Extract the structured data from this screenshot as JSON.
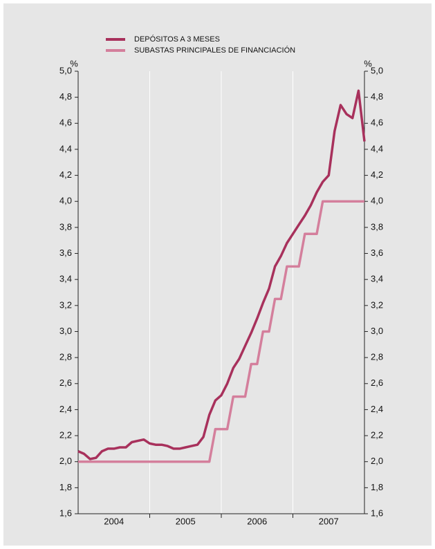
{
  "chart_data": {
    "type": "line",
    "y_unit": "%",
    "y2_unit": "%",
    "x": [
      2004,
      2004.083,
      2004.167,
      2004.25,
      2004.333,
      2004.417,
      2004.5,
      2004.583,
      2004.667,
      2004.75,
      2004.833,
      2004.917,
      2005,
      2005.083,
      2005.167,
      2005.25,
      2005.333,
      2005.417,
      2005.5,
      2005.583,
      2005.667,
      2005.75,
      2005.833,
      2005.917,
      2006,
      2006.083,
      2006.167,
      2006.25,
      2006.333,
      2006.417,
      2006.5,
      2006.583,
      2006.667,
      2006.75,
      2006.833,
      2006.917,
      2007,
      2007.083,
      2007.167,
      2007.25,
      2007.333,
      2007.417,
      2007.5,
      2007.583,
      2007.667,
      2007.75,
      2007.833,
      2007.917,
      2008
    ],
    "xlim": [
      2004,
      2008
    ],
    "xticks": [
      2005,
      2006,
      2007
    ],
    "year_labels": [
      "2004",
      "2005",
      "2006",
      "2007"
    ],
    "series": [
      {
        "name": "DEPÓSITOS A 3 MESES",
        "color": "#a8315c",
        "values": [
          2.08,
          2.06,
          2.02,
          2.03,
          2.08,
          2.1,
          2.1,
          2.11,
          2.11,
          2.15,
          2.16,
          2.17,
          2.14,
          2.13,
          2.13,
          2.12,
          2.1,
          2.1,
          2.11,
          2.12,
          2.13,
          2.19,
          2.36,
          2.47,
          2.51,
          2.6,
          2.72,
          2.79,
          2.89,
          2.99,
          3.1,
          3.22,
          3.33,
          3.5,
          3.58,
          3.68,
          3.75,
          3.82,
          3.89,
          3.97,
          4.07,
          4.15,
          4.2,
          4.54,
          4.74,
          4.67,
          4.64,
          4.85,
          4.46
        ]
      },
      {
        "name": "SUBASTAS PRINCIPALES DE FINANCIACIÓN",
        "color": "#d47f9c",
        "values": [
          2.0,
          2.0,
          2.0,
          2.0,
          2.0,
          2.0,
          2.0,
          2.0,
          2.0,
          2.0,
          2.0,
          2.0,
          2.0,
          2.0,
          2.0,
          2.0,
          2.0,
          2.0,
          2.0,
          2.0,
          2.0,
          2.0,
          2.0,
          2.25,
          2.25,
          2.25,
          2.5,
          2.5,
          2.5,
          2.75,
          2.75,
          3.0,
          3.0,
          3.25,
          3.25,
          3.5,
          3.5,
          3.5,
          3.75,
          3.75,
          3.75,
          4.0,
          4.0,
          4.0,
          4.0,
          4.0,
          4.0,
          4.0,
          4.0
        ]
      }
    ],
    "ylim": [
      1.6,
      5.0
    ],
    "yticks": [
      {
        "value": 1.6,
        "label": "1,6"
      },
      {
        "value": 1.8,
        "label": "1,8"
      },
      {
        "value": 2.0,
        "label": "2,0"
      },
      {
        "value": 2.2,
        "label": "2,2"
      },
      {
        "value": 2.4,
        "label": "2,4"
      },
      {
        "value": 2.6,
        "label": "2,6"
      },
      {
        "value": 2.8,
        "label": "2,8"
      },
      {
        "value": 3.0,
        "label": "3,0"
      },
      {
        "value": 3.2,
        "label": "3,2"
      },
      {
        "value": 3.4,
        "label": "3,4"
      },
      {
        "value": 3.6,
        "label": "3,6"
      },
      {
        "value": 3.8,
        "label": "3,8"
      },
      {
        "value": 4.0,
        "label": "4,0"
      },
      {
        "value": 4.2,
        "label": "4,2"
      },
      {
        "value": 4.4,
        "label": "4,4"
      },
      {
        "value": 4.6,
        "label": "4,6"
      },
      {
        "value": 4.8,
        "label": "4,8"
      },
      {
        "value": 5.0,
        "label": "5,0"
      }
    ],
    "y2lim": [
      1.6,
      5.0
    ],
    "y2ticks": [
      {
        "value": 1.6,
        "label": "1,6"
      },
      {
        "value": 1.8,
        "label": "1,8"
      },
      {
        "value": 2.0,
        "label": "2,0"
      },
      {
        "value": 2.2,
        "label": "2,2"
      },
      {
        "value": 2.4,
        "label": "2,4"
      },
      {
        "value": 2.6,
        "label": "2,6"
      },
      {
        "value": 2.8,
        "label": "2,8"
      },
      {
        "value": 3.0,
        "label": "3,0"
      },
      {
        "value": 3.2,
        "label": "3,2"
      },
      {
        "value": 3.4,
        "label": "3,4"
      },
      {
        "value": 3.6,
        "label": "3,6"
      },
      {
        "value": 3.8,
        "label": "3,8"
      },
      {
        "value": 4.0,
        "label": "4,0"
      },
      {
        "value": 4.2,
        "label": "4,2"
      },
      {
        "value": 4.4,
        "label": "4,4"
      },
      {
        "value": 4.6,
        "label": "4,6"
      },
      {
        "value": 4.8,
        "label": "4,8"
      },
      {
        "value": 5.0,
        "label": "5,0"
      }
    ]
  }
}
